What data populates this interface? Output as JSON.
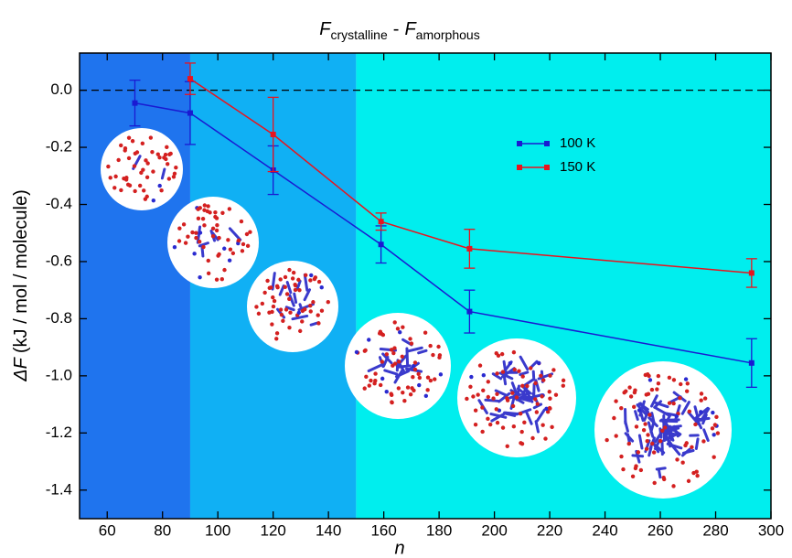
{
  "chart_data": {
    "type": "line",
    "title_parts": [
      "F",
      "crystalline",
      "-",
      "F",
      "amorphous"
    ],
    "xlabel": "n",
    "ylabel_parts": [
      "ΔF",
      "(kJ / mol / molecule)"
    ],
    "xlim": [
      50,
      300
    ],
    "ylim": [
      -1.5,
      0.13
    ],
    "xticks": [
      60,
      80,
      100,
      120,
      140,
      160,
      180,
      200,
      220,
      240,
      260,
      280,
      300
    ],
    "yticks": [
      {
        "value": 0,
        "label": "0.0"
      },
      -0.2,
      -0.4,
      -0.6,
      -0.8,
      {
        "value": -1,
        "label": "-1.0"
      },
      -1.2,
      -1.4
    ],
    "hline": 0,
    "regions": [
      {
        "x": [
          50,
          90
        ],
        "color": "#1f74ee"
      },
      {
        "x": [
          90,
          150
        ],
        "color": "#10b0f4"
      },
      {
        "x": [
          150,
          300
        ],
        "color": "#00eeee"
      }
    ],
    "series": [
      {
        "name": "100 K",
        "color": "#1a1ad2",
        "x": [
          70,
          90,
          120,
          159,
          191,
          293
        ],
        "values": [
          -0.045,
          -0.08,
          -0.28,
          -0.54,
          -0.775,
          -0.955
        ],
        "errors": [
          0.08,
          0.11,
          0.085,
          0.065,
          0.075,
          0.085
        ]
      },
      {
        "name": "150 K",
        "color": "#e8141e",
        "x": [
          90,
          120,
          159,
          191,
          293
        ],
        "values": [
          0.04,
          -0.155,
          -0.46,
          -0.555,
          -0.64
        ],
        "errors": [
          0.055,
          0.13,
          0.03,
          0.068,
          0.05
        ]
      }
    ],
    "legend": "upper-center"
  }
}
